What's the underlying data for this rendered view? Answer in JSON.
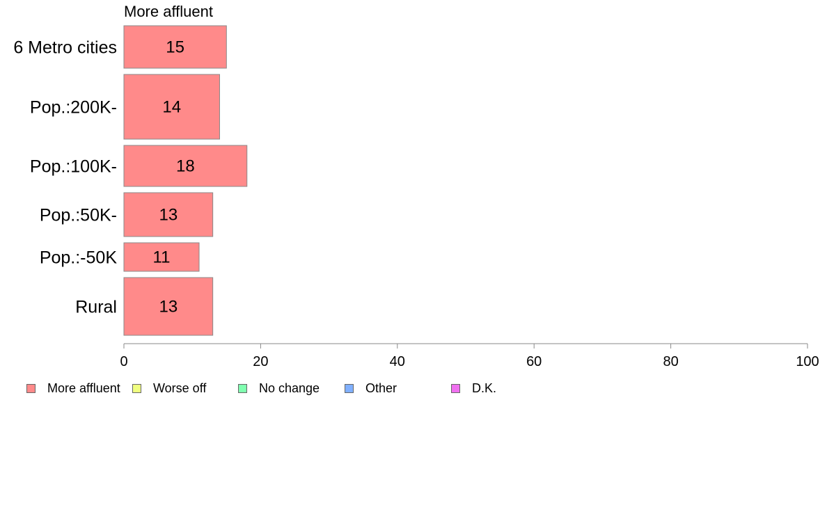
{
  "chart_data": {
    "type": "bar",
    "orientation": "horizontal",
    "series_title": "More affluent",
    "categories": [
      "6 Metro cities",
      "Pop.:200K-",
      "Pop.:100K-",
      "Pop.:50K-",
      "Pop.:-50K",
      "Rural"
    ],
    "series": [
      {
        "name": "More affluent",
        "values": [
          15,
          14,
          18,
          13,
          11,
          13
        ],
        "value_labels": [
          "15",
          "14",
          "18",
          "13",
          "11",
          "13"
        ]
      }
    ],
    "xlim": [
      0,
      100
    ],
    "xticks": [
      "0",
      "20",
      "40",
      "60",
      "80",
      "100"
    ],
    "grid": false,
    "legend_position": "bottom-left"
  },
  "legend": [
    {
      "label": "More affluent",
      "color": "#ff8a8a"
    },
    {
      "label": "Worse off",
      "color": "#f0ff80"
    },
    {
      "label": "No change",
      "color": "#80ffb0"
    },
    {
      "label": "Other",
      "color": "#80b0ff"
    },
    {
      "label": "D.K.",
      "color": "#f070f0"
    }
  ],
  "colors": {
    "bar_fill": "#ff8a8a",
    "bar_stroke": "#888888",
    "axis": "#888888"
  }
}
